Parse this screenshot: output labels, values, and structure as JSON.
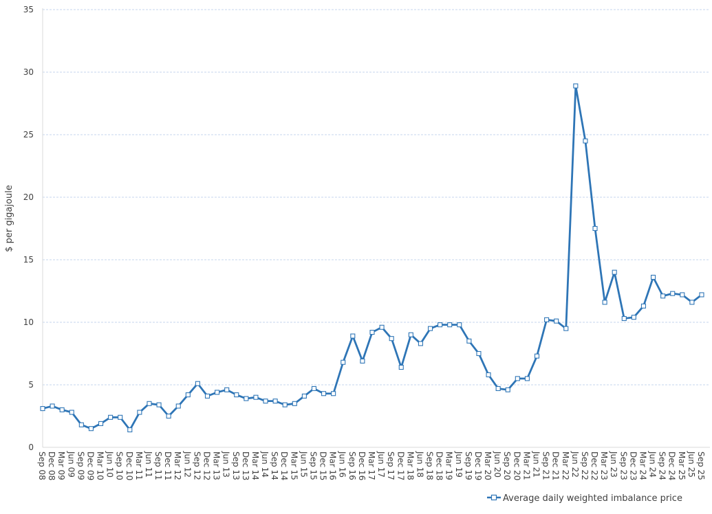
{
  "chart_data": {
    "type": "line",
    "title": "",
    "xlabel": "",
    "ylabel": "$ per gigajoule",
    "ylim": [
      0,
      35
    ],
    "yticks": [
      0,
      5,
      10,
      15,
      20,
      25,
      30,
      35
    ],
    "grid": "horizontal dashed",
    "legend_position": "bottom-right",
    "colors": {
      "series": "#2e75b6",
      "grid": "#b4c7e7",
      "axis": "#d9d9d9",
      "text": "#404040"
    },
    "categories": [
      "Sep 08",
      "Dec 08",
      "Mar 09",
      "Jun 09",
      "Sep 09",
      "Dec 09",
      "Mar 10",
      "Jun 10",
      "Sep 10",
      "Dec 10",
      "Mar 11",
      "Jun 11",
      "Sep 11",
      "Dec 11",
      "Mar 12",
      "Jun 12",
      "Sep 12",
      "Dec 12",
      "Mar 13",
      "Jun 13",
      "Sep 13",
      "Dec 13",
      "Mar 14",
      "Jun 14",
      "Sep 14",
      "Dec 14",
      "Mar 15",
      "Jun 15",
      "Sep 15",
      "Dec 15",
      "Mar 16",
      "Jun 16",
      "Sep 16",
      "Dec 16",
      "Mar 17",
      "Jun 17",
      "Sep 17",
      "Dec 17",
      "Mar 18",
      "Jun 18",
      "Sep 18",
      "Dec 18",
      "Mar 19",
      "Jun 19",
      "Sep 19",
      "Dec 19",
      "Mar 20",
      "Jun 20",
      "Sep 20",
      "Dec 20",
      "Mar 21",
      "Jun 21",
      "Sep 21",
      "Dec 21",
      "Mar 22",
      "Jun 22",
      "Sep 22",
      "Dec 22",
      "Mar 23",
      "Jun 23",
      "Sep 23",
      "Dec 23",
      "Mar 24",
      "Jun 24",
      "Sep 24",
      "Dec 24",
      "Mar 25",
      "Jun 25",
      "Sep 25"
    ],
    "series": [
      {
        "name": "Average daily weighted imbalance price",
        "marker": "square",
        "values": [
          3.1,
          3.3,
          3.0,
          2.8,
          1.8,
          1.5,
          1.9,
          2.4,
          2.4,
          1.4,
          2.8,
          3.5,
          3.4,
          2.5,
          3.3,
          4.2,
          5.1,
          4.1,
          4.4,
          4.6,
          4.2,
          3.9,
          4.0,
          3.7,
          3.7,
          3.4,
          3.5,
          4.1,
          4.7,
          4.3,
          4.3,
          6.8,
          8.9,
          6.9,
          9.2,
          9.6,
          8.7,
          6.4,
          9.0,
          8.3,
          9.5,
          9.8,
          9.8,
          9.8,
          8.5,
          7.5,
          5.8,
          4.7,
          4.6,
          5.5,
          5.5,
          7.3,
          10.2,
          10.1,
          9.5,
          28.9,
          24.5,
          17.5,
          11.6,
          14.0,
          10.3,
          10.4,
          11.3,
          13.6,
          12.1,
          12.3,
          12.2,
          11.6,
          12.2
        ]
      }
    ]
  }
}
